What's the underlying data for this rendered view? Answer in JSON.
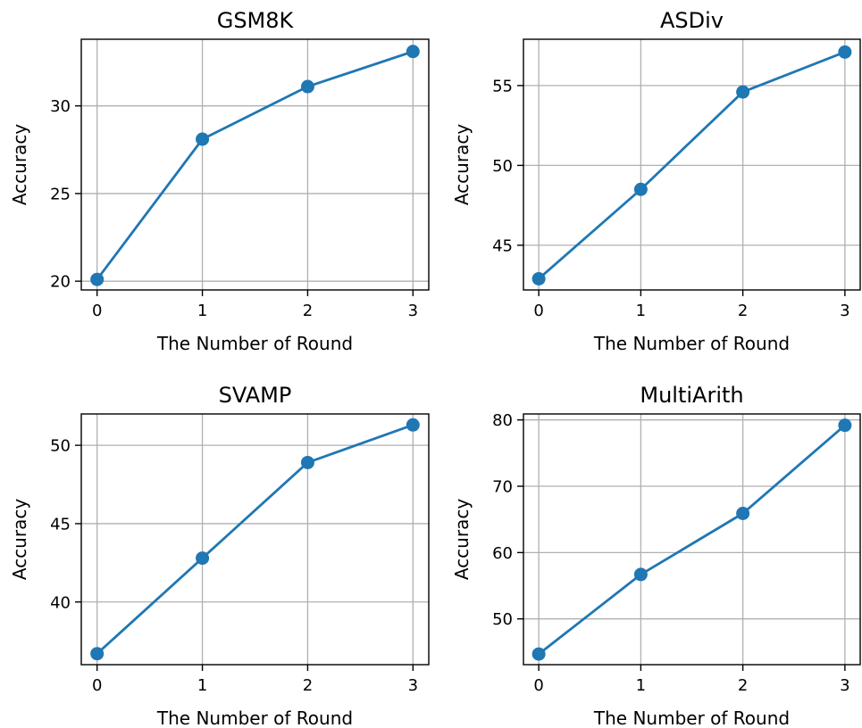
{
  "figure": {
    "series_color": "#1f77b4",
    "grid": true
  },
  "chart_data": [
    {
      "type": "line",
      "title": "GSM8K",
      "xlabel": "The Number of Round",
      "ylabel": "Accuracy",
      "x": [
        0,
        1,
        2,
        3
      ],
      "series": [
        {
          "values": [
            20.1,
            28.1,
            31.1,
            33.1
          ],
          "marker": "circle"
        }
      ],
      "xlim": [
        -0.15,
        3.15
      ],
      "ylim": [
        19.5,
        33.8
      ],
      "xticks": [
        0,
        1,
        2,
        3
      ],
      "yticks": [
        20,
        25,
        30
      ]
    },
    {
      "type": "line",
      "title": "ASDiv",
      "xlabel": "The Number of Round",
      "ylabel": "Accuracy",
      "x": [
        0,
        1,
        2,
        3
      ],
      "series": [
        {
          "values": [
            42.9,
            48.5,
            54.6,
            57.1
          ],
          "marker": "circle"
        }
      ],
      "xlim": [
        -0.15,
        3.15
      ],
      "ylim": [
        42.2,
        57.9
      ],
      "xticks": [
        0,
        1,
        2,
        3
      ],
      "yticks": [
        45,
        50,
        55
      ]
    },
    {
      "type": "line",
      "title": "SVAMP",
      "xlabel": "The Number of Round",
      "ylabel": "Accuracy",
      "x": [
        0,
        1,
        2,
        3
      ],
      "series": [
        {
          "values": [
            36.7,
            42.8,
            48.9,
            51.3
          ],
          "marker": "circle"
        }
      ],
      "xlim": [
        -0.15,
        3.15
      ],
      "ylim": [
        36.0,
        52.0
      ],
      "xticks": [
        0,
        1,
        2,
        3
      ],
      "yticks": [
        40,
        45,
        50
      ]
    },
    {
      "type": "line",
      "title": "MultiArith",
      "xlabel": "The Number of Round",
      "ylabel": "Accuracy",
      "x": [
        0,
        1,
        2,
        3
      ],
      "series": [
        {
          "values": [
            44.7,
            56.7,
            65.9,
            79.2
          ],
          "marker": "circle"
        }
      ],
      "xlim": [
        -0.15,
        3.15
      ],
      "ylim": [
        43.1,
        80.9
      ],
      "xticks": [
        0,
        1,
        2,
        3
      ],
      "yticks": [
        50,
        60,
        70,
        80
      ]
    }
  ]
}
